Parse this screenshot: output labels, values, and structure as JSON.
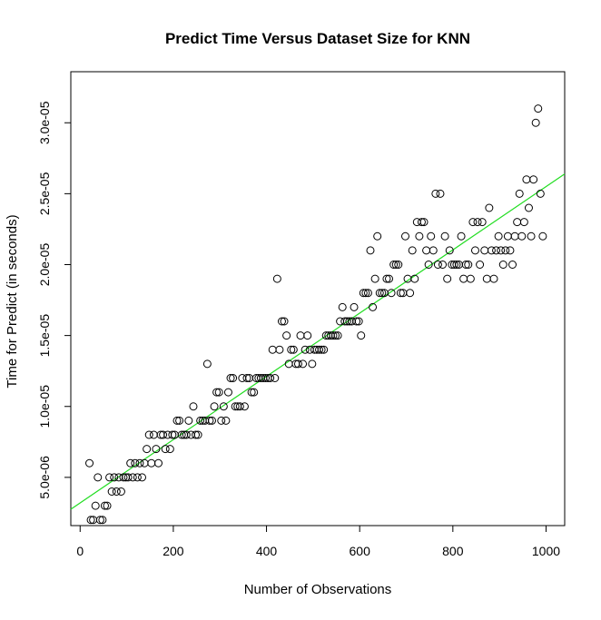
{
  "chart_data": {
    "type": "scatter",
    "title": "Predict Time Versus Dataset Size for KNN",
    "xlabel": "Number of Observations",
    "ylabel": "Time for Predict (in seconds)",
    "xlim": [
      -20,
      1040
    ],
    "ylim": [
      1.6e-06,
      3.36e-05
    ],
    "x_ticks": [
      0,
      200,
      400,
      600,
      800,
      1000
    ],
    "x_tick_labels": [
      "0",
      "200",
      "400",
      "600",
      "800",
      "1000"
    ],
    "y_ticks": [
      5e-06,
      1e-05,
      1.5e-05,
      2e-05,
      2.5e-05,
      3e-05
    ],
    "y_tick_labels": [
      "5.0e-06",
      "1.0e-05",
      "1.5e-05",
      "2.0e-05",
      "2.5e-05",
      "3.0e-05"
    ],
    "grid": false,
    "point_color": "#000000",
    "fit_line": {
      "intercept": 3.2e-06,
      "slope": 2.23e-08,
      "color": "#22dd22"
    },
    "points": [
      [
        20,
        6e-06
      ],
      [
        23,
        2e-06
      ],
      [
        28,
        2e-06
      ],
      [
        33,
        3e-06
      ],
      [
        38,
        5e-06
      ],
      [
        43,
        2e-06
      ],
      [
        48,
        2e-06
      ],
      [
        53,
        3e-06
      ],
      [
        58,
        3e-06
      ],
      [
        63,
        5e-06
      ],
      [
        68,
        4e-06
      ],
      [
        73,
        5e-06
      ],
      [
        78,
        4e-06
      ],
      [
        83,
        5e-06
      ],
      [
        88,
        4e-06
      ],
      [
        93,
        5e-06
      ],
      [
        98,
        5e-06
      ],
      [
        103,
        5e-06
      ],
      [
        108,
        6e-06
      ],
      [
        113,
        5e-06
      ],
      [
        118,
        6e-06
      ],
      [
        123,
        5e-06
      ],
      [
        128,
        6e-06
      ],
      [
        133,
        5e-06
      ],
      [
        138,
        6e-06
      ],
      [
        143,
        7e-06
      ],
      [
        148,
        8e-06
      ],
      [
        153,
        6e-06
      ],
      [
        158,
        8e-06
      ],
      [
        163,
        7e-06
      ],
      [
        168,
        6e-06
      ],
      [
        173,
        8e-06
      ],
      [
        178,
        8e-06
      ],
      [
        183,
        7e-06
      ],
      [
        188,
        8e-06
      ],
      [
        193,
        7e-06
      ],
      [
        198,
        8e-06
      ],
      [
        203,
        8e-06
      ],
      [
        208,
        9e-06
      ],
      [
        213,
        9e-06
      ],
      [
        218,
        8e-06
      ],
      [
        223,
        8e-06
      ],
      [
        228,
        8e-06
      ],
      [
        233,
        9e-06
      ],
      [
        238,
        8e-06
      ],
      [
        243,
        1e-05
      ],
      [
        248,
        8e-06
      ],
      [
        253,
        8e-06
      ],
      [
        258,
        9e-06
      ],
      [
        263,
        9e-06
      ],
      [
        268,
        9e-06
      ],
      [
        273,
        1.3e-05
      ],
      [
        278,
        9e-06
      ],
      [
        283,
        9e-06
      ],
      [
        288,
        1e-05
      ],
      [
        293,
        1.1e-05
      ],
      [
        298,
        1.1e-05
      ],
      [
        303,
        9e-06
      ],
      [
        308,
        1e-05
      ],
      [
        313,
        9e-06
      ],
      [
        318,
        1.1e-05
      ],
      [
        323,
        1.2e-05
      ],
      [
        328,
        1.2e-05
      ],
      [
        333,
        1e-05
      ],
      [
        338,
        1e-05
      ],
      [
        343,
        1e-05
      ],
      [
        348,
        1.2e-05
      ],
      [
        353,
        1e-05
      ],
      [
        358,
        1.2e-05
      ],
      [
        363,
        1.2e-05
      ],
      [
        368,
        1.1e-05
      ],
      [
        373,
        1.1e-05
      ],
      [
        378,
        1.2e-05
      ],
      [
        383,
        1.2e-05
      ],
      [
        388,
        1.2e-05
      ],
      [
        393,
        1.2e-05
      ],
      [
        398,
        1.2e-05
      ],
      [
        403,
        1.2e-05
      ],
      [
        408,
        1.2e-05
      ],
      [
        413,
        1.4e-05
      ],
      [
        418,
        1.2e-05
      ],
      [
        423,
        1.9e-05
      ],
      [
        428,
        1.4e-05
      ],
      [
        433,
        1.6e-05
      ],
      [
        438,
        1.6e-05
      ],
      [
        443,
        1.5e-05
      ],
      [
        448,
        1.3e-05
      ],
      [
        453,
        1.4e-05
      ],
      [
        458,
        1.4e-05
      ],
      [
        463,
        1.3e-05
      ],
      [
        468,
        1.3e-05
      ],
      [
        473,
        1.5e-05
      ],
      [
        478,
        1.3e-05
      ],
      [
        483,
        1.4e-05
      ],
      [
        488,
        1.5e-05
      ],
      [
        493,
        1.4e-05
      ],
      [
        498,
        1.3e-05
      ],
      [
        503,
        1.4e-05
      ],
      [
        508,
        1.4e-05
      ],
      [
        513,
        1.4e-05
      ],
      [
        518,
        1.4e-05
      ],
      [
        523,
        1.4e-05
      ],
      [
        528,
        1.5e-05
      ],
      [
        533,
        1.5e-05
      ],
      [
        538,
        1.5e-05
      ],
      [
        543,
        1.5e-05
      ],
      [
        548,
        1.5e-05
      ],
      [
        553,
        1.5e-05
      ],
      [
        558,
        1.6e-05
      ],
      [
        563,
        1.7e-05
      ],
      [
        568,
        1.6e-05
      ],
      [
        573,
        1.6e-05
      ],
      [
        578,
        1.6e-05
      ],
      [
        583,
        1.6e-05
      ],
      [
        588,
        1.7e-05
      ],
      [
        593,
        1.6e-05
      ],
      [
        598,
        1.6e-05
      ],
      [
        603,
        1.5e-05
      ],
      [
        608,
        1.8e-05
      ],
      [
        613,
        1.8e-05
      ],
      [
        618,
        1.8e-05
      ],
      [
        623,
        2.1e-05
      ],
      [
        628,
        1.7e-05
      ],
      [
        633,
        1.9e-05
      ],
      [
        638,
        2.2e-05
      ],
      [
        643,
        1.8e-05
      ],
      [
        648,
        1.8e-05
      ],
      [
        653,
        1.8e-05
      ],
      [
        658,
        1.9e-05
      ],
      [
        663,
        1.9e-05
      ],
      [
        668,
        1.8e-05
      ],
      [
        673,
        2e-05
      ],
      [
        678,
        2e-05
      ],
      [
        683,
        2e-05
      ],
      [
        688,
        1.8e-05
      ],
      [
        693,
        1.8e-05
      ],
      [
        698,
        2.2e-05
      ],
      [
        703,
        1.9e-05
      ],
      [
        708,
        1.8e-05
      ],
      [
        713,
        2.1e-05
      ],
      [
        718,
        1.9e-05
      ],
      [
        723,
        2.3e-05
      ],
      [
        728,
        2.2e-05
      ],
      [
        733,
        2.3e-05
      ],
      [
        738,
        2.3e-05
      ],
      [
        743,
        2.1e-05
      ],
      [
        748,
        2e-05
      ],
      [
        753,
        2.2e-05
      ],
      [
        758,
        2.1e-05
      ],
      [
        763,
        2.5e-05
      ],
      [
        768,
        2e-05
      ],
      [
        773,
        2.5e-05
      ],
      [
        778,
        2e-05
      ],
      [
        783,
        2.2e-05
      ],
      [
        788,
        1.9e-05
      ],
      [
        793,
        2.1e-05
      ],
      [
        798,
        2e-05
      ],
      [
        803,
        2e-05
      ],
      [
        808,
        2e-05
      ],
      [
        813,
        2e-05
      ],
      [
        818,
        2.2e-05
      ],
      [
        823,
        1.9e-05
      ],
      [
        828,
        2e-05
      ],
      [
        833,
        2e-05
      ],
      [
        838,
        1.9e-05
      ],
      [
        843,
        2.3e-05
      ],
      [
        848,
        2.1e-05
      ],
      [
        853,
        2.3e-05
      ],
      [
        858,
        2e-05
      ],
      [
        863,
        2.3e-05
      ],
      [
        868,
        2.1e-05
      ],
      [
        873,
        1.9e-05
      ],
      [
        878,
        2.4e-05
      ],
      [
        883,
        2.1e-05
      ],
      [
        888,
        1.9e-05
      ],
      [
        893,
        2.1e-05
      ],
      [
        898,
        2.2e-05
      ],
      [
        903,
        2.1e-05
      ],
      [
        908,
        2e-05
      ],
      [
        913,
        2.1e-05
      ],
      [
        918,
        2.2e-05
      ],
      [
        923,
        2.1e-05
      ],
      [
        928,
        2e-05
      ],
      [
        933,
        2.2e-05
      ],
      [
        938,
        2.3e-05
      ],
      [
        943,
        2.5e-05
      ],
      [
        948,
        2.2e-05
      ],
      [
        953,
        2.3e-05
      ],
      [
        958,
        2.6e-05
      ],
      [
        963,
        2.4e-05
      ],
      [
        968,
        2.2e-05
      ],
      [
        973,
        2.6e-05
      ],
      [
        978,
        3e-05
      ],
      [
        983,
        3.1e-05
      ],
      [
        988,
        2.5e-05
      ],
      [
        993,
        2.2e-05
      ]
    ]
  }
}
